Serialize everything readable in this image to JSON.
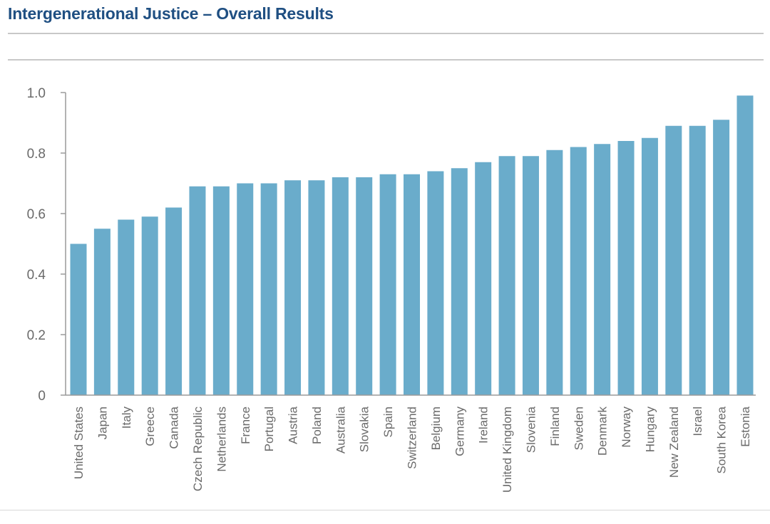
{
  "chart_data": {
    "type": "bar",
    "title": "Intergenerational Justice – Overall Results",
    "xlabel": "",
    "ylabel": "",
    "ylim": [
      0,
      1.0
    ],
    "yticks": [
      "0",
      "0.2",
      "0.4",
      "0.6",
      "0.8",
      "1.0"
    ],
    "grid": false,
    "legend": "none",
    "bar_color": "#6aaccb",
    "categories": [
      "United States",
      "Japan",
      "Italy",
      "Greece",
      "Canada",
      "Czech Republic",
      "Netherlands",
      "France",
      "Portugal",
      "Austria",
      "Poland",
      "Australia",
      "Slovakia",
      "Spain",
      "Switzerland",
      "Belgium",
      "Germany",
      "Ireland",
      "United Kingdom",
      "Slovenia",
      "Finland",
      "Sweden",
      "Denmark",
      "Norway",
      "Hungary",
      "New Zealand",
      "Israel",
      "South Korea",
      "Estonia"
    ],
    "values": [
      0.5,
      0.55,
      0.58,
      0.59,
      0.62,
      0.69,
      0.69,
      0.7,
      0.7,
      0.71,
      0.71,
      0.72,
      0.72,
      0.73,
      0.73,
      0.74,
      0.75,
      0.77,
      0.79,
      0.79,
      0.81,
      0.82,
      0.83,
      0.84,
      0.85,
      0.89,
      0.89,
      0.91,
      0.99
    ]
  }
}
